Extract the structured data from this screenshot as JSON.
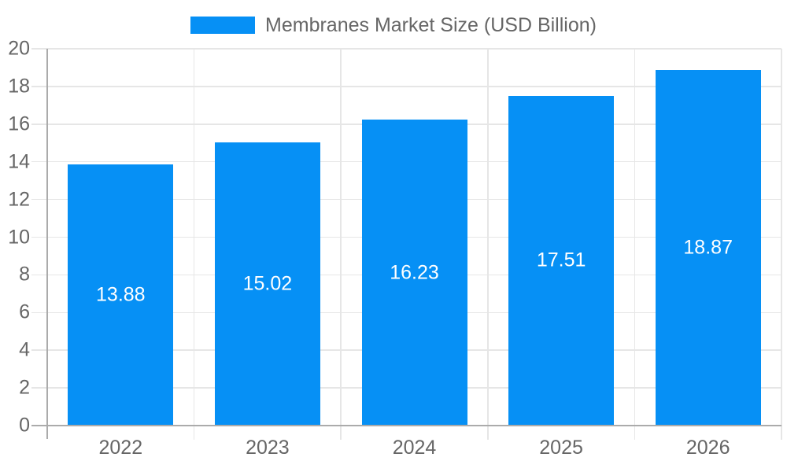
{
  "legend": {
    "label": "Membranes Market Size (USD Billion)"
  },
  "chart_data": {
    "type": "bar",
    "title": "Membranes Market Size (USD Billion)",
    "categories": [
      "2022",
      "2023",
      "2024",
      "2025",
      "2026"
    ],
    "values": [
      13.88,
      15.02,
      16.23,
      17.51,
      18.87
    ],
    "value_labels": [
      "13.88",
      "15.02",
      "16.23",
      "17.51",
      "18.87"
    ],
    "xlabel": "",
    "ylabel": "",
    "ylim": [
      0,
      20
    ],
    "yticks": [
      0,
      2,
      4,
      6,
      8,
      10,
      12,
      14,
      16,
      18,
      20
    ],
    "grid": true,
    "legend_position": "top-center",
    "colors": {
      "bar": "#0690f5",
      "grid": "#e6e6e6",
      "axis": "#ababab",
      "tick_label": "#666666",
      "legend_text": "#666666",
      "value_label": "#ffffff",
      "background": "#ffffff"
    }
  }
}
